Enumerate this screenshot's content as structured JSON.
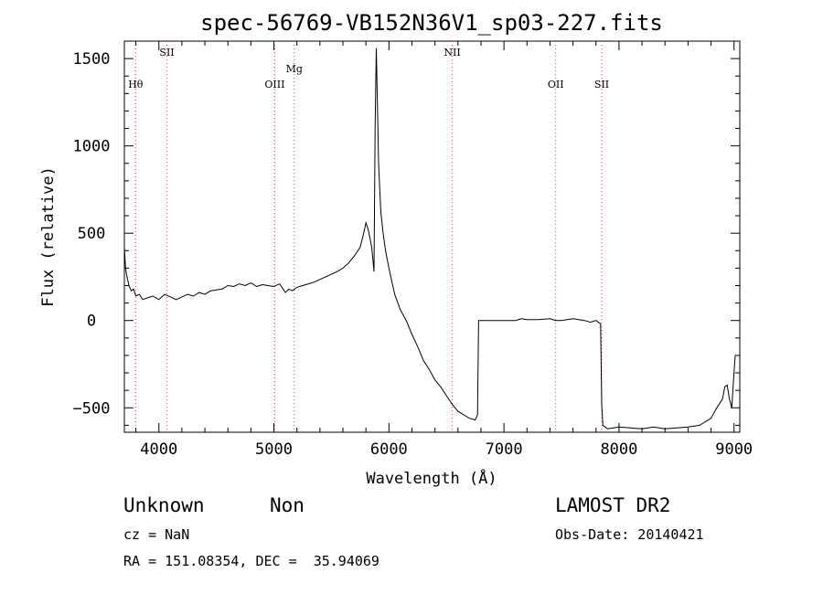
{
  "chart_data": {
    "type": "line",
    "title": "spec-56769-VB152N36V1_sp03-227.fits",
    "xlabel": "Wavelength (Å)",
    "ylabel": "Flux (relative)",
    "xlim": [
      3700,
      9050
    ],
    "ylim": [
      -640,
      1600
    ],
    "x_ticks": [
      4000,
      5000,
      6000,
      7000,
      8000,
      9000
    ],
    "y_ticks": [
      -500,
      0,
      500,
      1000,
      1500
    ],
    "series": [
      {
        "x": [
          3700,
          3710,
          3720,
          3740,
          3760,
          3780,
          3800,
          3830,
          3860,
          3900,
          3950,
          4000,
          4050,
          4100,
          4150,
          4200,
          4250,
          4300,
          4350,
          4400,
          4450,
          4500,
          4550,
          4600,
          4650,
          4700,
          4750,
          4800,
          4850,
          4900,
          4950,
          5000,
          5050,
          5100,
          5130,
          5160,
          5200,
          5250,
          5300,
          5350,
          5400,
          5450,
          5500,
          5550,
          5600,
          5650,
          5700,
          5750,
          5780,
          5800,
          5820,
          5850,
          5870,
          5880,
          5890,
          5900,
          5910,
          5920,
          5930,
          5950,
          5970,
          6000,
          6050,
          6100,
          6150,
          6200,
          6250,
          6300,
          6350,
          6400,
          6450,
          6500,
          6550,
          6600,
          6650,
          6700,
          6750,
          6770,
          6780,
          6800,
          6900,
          7000,
          7100,
          7150,
          7200,
          7300,
          7400,
          7450,
          7500,
          7600,
          7700,
          7750,
          7800,
          7840,
          7850,
          7860,
          7880,
          7900,
          7950,
          8000,
          8100,
          8200,
          8300,
          8400,
          8500,
          8600,
          8700,
          8800,
          8850,
          8900,
          8920,
          8940,
          8960,
          8980,
          9000,
          9010
        ],
        "y": [
          420,
          300,
          260,
          200,
          170,
          180,
          140,
          150,
          120,
          130,
          140,
          120,
          150,
          135,
          120,
          135,
          150,
          140,
          160,
          150,
          170,
          175,
          180,
          200,
          195,
          210,
          200,
          215,
          195,
          205,
          200,
          195,
          210,
          160,
          180,
          170,
          190,
          200,
          210,
          220,
          235,
          250,
          265,
          280,
          300,
          330,
          370,
          420,
          500,
          560,
          520,
          420,
          280,
          1100,
          1560,
          1250,
          900,
          750,
          620,
          500,
          400,
          300,
          150,
          60,
          0,
          -80,
          -150,
          -230,
          -280,
          -340,
          -380,
          -430,
          -480,
          -520,
          -540,
          -560,
          -570,
          -540,
          0,
          0,
          0,
          0,
          0,
          10,
          5,
          5,
          10,
          0,
          0,
          10,
          0,
          -10,
          0,
          -20,
          -480,
          -600,
          -610,
          -620,
          -615,
          -610,
          -615,
          -620,
          -610,
          -620,
          -615,
          -610,
          -600,
          -560,
          -500,
          -450,
          -380,
          -370,
          -450,
          -500,
          -300,
          -200
        ]
      }
    ],
    "spectral_lines": [
      {
        "name": "Hθ",
        "x": 3798,
        "row": "low"
      },
      {
        "name": "SII",
        "x": 4070,
        "row": "high"
      },
      {
        "name": "OIII",
        "x": 5007,
        "row": "low"
      },
      {
        "name": "Mg",
        "x": 5177,
        "row": "mid"
      },
      {
        "name": "NII",
        "x": 6550,
        "row": "high"
      },
      {
        "name": "OII",
        "x": 7450,
        "row": "low"
      },
      {
        "name": "SII",
        "x": 7850,
        "row": "low"
      }
    ],
    "line_marker_color": "#d04040",
    "grid": false
  },
  "footer": {
    "class_label": "Unknown",
    "subclass_label": "Non",
    "survey_label": "LAMOST DR2",
    "cz_text": "cz = NaN",
    "obs_date_text": "Obs-Date: 20140421",
    "coords_text": "RA = 151.08354, DEC =  35.94069"
  }
}
